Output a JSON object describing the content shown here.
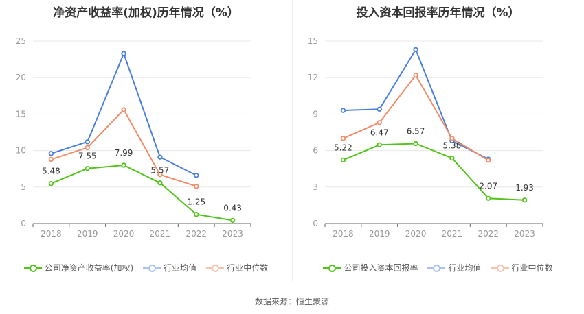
{
  "colors": {
    "company": "#52c41a",
    "average": "#4a7fe0",
    "median": "#f28c68",
    "grid": "#e8e8e8",
    "axis": "#666666"
  },
  "source": "数据来源：恒生聚源",
  "chart_data": [
    {
      "type": "line",
      "title": "净资产收益率(加权)历年情况（%）",
      "x": [
        "2018",
        "2019",
        "2020",
        "2021",
        "2022",
        "2023"
      ],
      "ylim": [
        0,
        25
      ],
      "yticks": [
        0,
        5,
        10,
        15,
        20,
        25
      ],
      "grid": true,
      "legend_position": "bottom",
      "series": [
        {
          "name": "公司净资产收益率(加权)",
          "key": "company",
          "values": [
            5.48,
            7.55,
            7.99,
            5.57,
            1.25,
            0.43
          ],
          "labels": [
            "5.48",
            "7.55",
            "7.99",
            "5.57",
            "1.25",
            "0.43"
          ]
        },
        {
          "name": "行业均值",
          "key": "average",
          "values": [
            9.6,
            11.2,
            23.3,
            9.1,
            6.6,
            null
          ]
        },
        {
          "name": "行业中位数",
          "key": "median",
          "values": [
            8.8,
            10.4,
            15.6,
            6.7,
            5.1,
            null
          ]
        }
      ]
    },
    {
      "type": "line",
      "title": "投入资本回报率历年情况（%）",
      "x": [
        "2018",
        "2019",
        "2020",
        "2021",
        "2022",
        "2023"
      ],
      "ylim": [
        0,
        15
      ],
      "yticks": [
        0,
        3,
        6,
        9,
        12,
        15
      ],
      "grid": true,
      "legend_position": "bottom",
      "series": [
        {
          "name": "公司投入资本回报率",
          "key": "company",
          "values": [
            5.22,
            6.47,
            6.57,
            5.38,
            2.07,
            1.93
          ],
          "labels": [
            "5.22",
            "6.47",
            "6.57",
            "5.38",
            "2.07",
            "1.93"
          ]
        },
        {
          "name": "行业均值",
          "key": "average",
          "values": [
            9.3,
            9.4,
            14.3,
            6.8,
            5.3,
            null
          ]
        },
        {
          "name": "行业中位数",
          "key": "median",
          "values": [
            7.0,
            8.3,
            12.2,
            7.0,
            5.2,
            null
          ]
        }
      ]
    }
  ]
}
